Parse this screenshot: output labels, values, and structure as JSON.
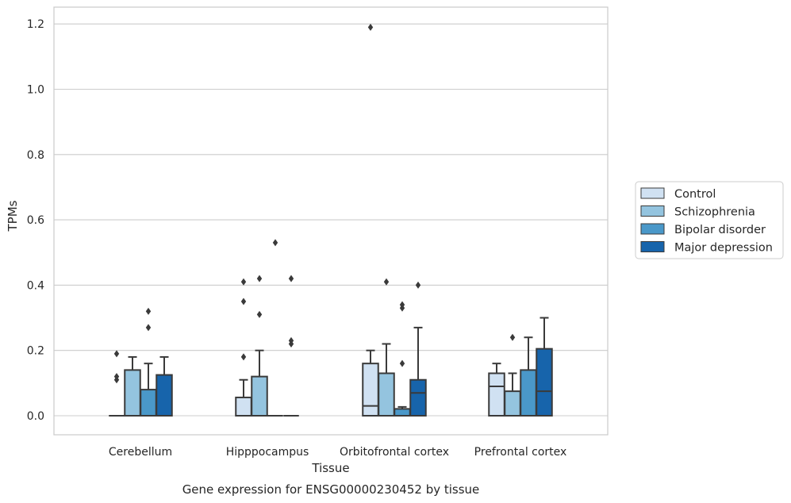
{
  "chart_data": {
    "type": "box",
    "xlabel": "Tissue",
    "ylabel": "TPMs",
    "caption": "Gene expression for ENSG00000230452 by tissue",
    "ylim": [
      -0.06,
      1.25
    ],
    "yticks": [
      0.0,
      0.2,
      0.4,
      0.6,
      0.8,
      1.0,
      1.2
    ],
    "ytick_labels": [
      "0.0",
      "0.2",
      "0.4",
      "0.6",
      "0.8",
      "1.0",
      "1.2"
    ],
    "grid": "horizontal",
    "legend_position": "right",
    "categories": [
      "Cerebellum",
      "Hipppocampus",
      "Orbitofrontal cortex",
      "Prefrontal cortex"
    ],
    "series": [
      {
        "name": "Control",
        "color": "#d0e1f2",
        "boxes": [
          {
            "q1": 0.0,
            "median": 0.0,
            "q3": 0.0,
            "whisker_low": 0.0,
            "whisker_high": 0.0,
            "outliers": [
              0.19,
              0.12,
              0.11
            ]
          },
          {
            "q1": 0.0,
            "median": 0.0,
            "q3": 0.056,
            "whisker_low": 0.0,
            "whisker_high": 0.11,
            "outliers": [
              0.41,
              0.35,
              0.18
            ]
          },
          {
            "q1": 0.0,
            "median": 0.03,
            "q3": 0.16,
            "whisker_low": 0.0,
            "whisker_high": 0.2,
            "outliers": [
              1.19
            ]
          },
          {
            "q1": 0.0,
            "median": 0.09,
            "q3": 0.13,
            "whisker_low": 0.0,
            "whisker_high": 0.16,
            "outliers": []
          }
        ]
      },
      {
        "name": "Schizophrenia",
        "color": "#94c4df",
        "boxes": [
          {
            "q1": 0.0,
            "median": 0.0,
            "q3": 0.14,
            "whisker_low": 0.0,
            "whisker_high": 0.18,
            "outliers": []
          },
          {
            "q1": 0.0,
            "median": 0.0,
            "q3": 0.12,
            "whisker_low": 0.0,
            "whisker_high": 0.2,
            "outliers": [
              0.42,
              0.31
            ]
          },
          {
            "q1": 0.0,
            "median": 0.0,
            "q3": 0.13,
            "whisker_low": 0.0,
            "whisker_high": 0.22,
            "outliers": [
              0.41
            ]
          },
          {
            "q1": 0.0,
            "median": 0.0,
            "q3": 0.075,
            "whisker_low": 0.0,
            "whisker_high": 0.13,
            "outliers": [
              0.24
            ]
          }
        ]
      },
      {
        "name": "Bipolar disorder",
        "color": "#4a98c9",
        "boxes": [
          {
            "q1": 0.0,
            "median": 0.0,
            "q3": 0.08,
            "whisker_low": 0.0,
            "whisker_high": 0.16,
            "outliers": [
              0.32,
              0.27
            ]
          },
          {
            "q1": 0.0,
            "median": 0.0,
            "q3": 0.0,
            "whisker_low": 0.0,
            "whisker_high": 0.0,
            "outliers": [
              0.53
            ]
          },
          {
            "q1": 0.0,
            "median": 0.0,
            "q3": 0.021,
            "whisker_low": 0.0,
            "whisker_high": 0.027,
            "outliers": [
              0.34,
              0.33,
              0.16
            ]
          },
          {
            "q1": 0.0,
            "median": 0.0,
            "q3": 0.14,
            "whisker_low": 0.0,
            "whisker_high": 0.24,
            "outliers": []
          }
        ]
      },
      {
        "name": "Major depression",
        "color": "#1764ab",
        "boxes": [
          {
            "q1": 0.0,
            "median": 0.0,
            "q3": 0.125,
            "whisker_low": 0.0,
            "whisker_high": 0.18,
            "outliers": []
          },
          {
            "q1": 0.0,
            "median": 0.0,
            "q3": 0.0,
            "whisker_low": 0.0,
            "whisker_high": 0.0,
            "outliers": [
              0.42,
              0.23,
              0.22
            ]
          },
          {
            "q1": 0.0,
            "median": 0.07,
            "q3": 0.11,
            "whisker_low": 0.0,
            "whisker_high": 0.27,
            "outliers": [
              0.4
            ]
          },
          {
            "q1": 0.0,
            "median": 0.075,
            "q3": 0.205,
            "whisker_low": 0.0,
            "whisker_high": 0.3,
            "outliers": []
          }
        ]
      }
    ],
    "line_color": "#3a3a3a"
  }
}
